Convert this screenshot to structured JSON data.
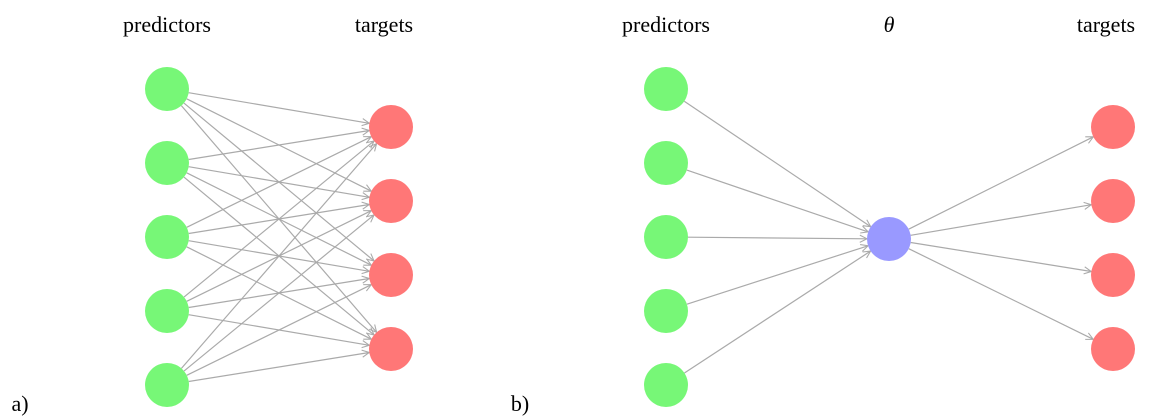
{
  "panels": [
    {
      "label": "a)",
      "columns": [
        "predictors",
        "targets"
      ]
    },
    {
      "label": "b)",
      "columns": [
        "predictors",
        "θ",
        "targets"
      ]
    }
  ]
}
